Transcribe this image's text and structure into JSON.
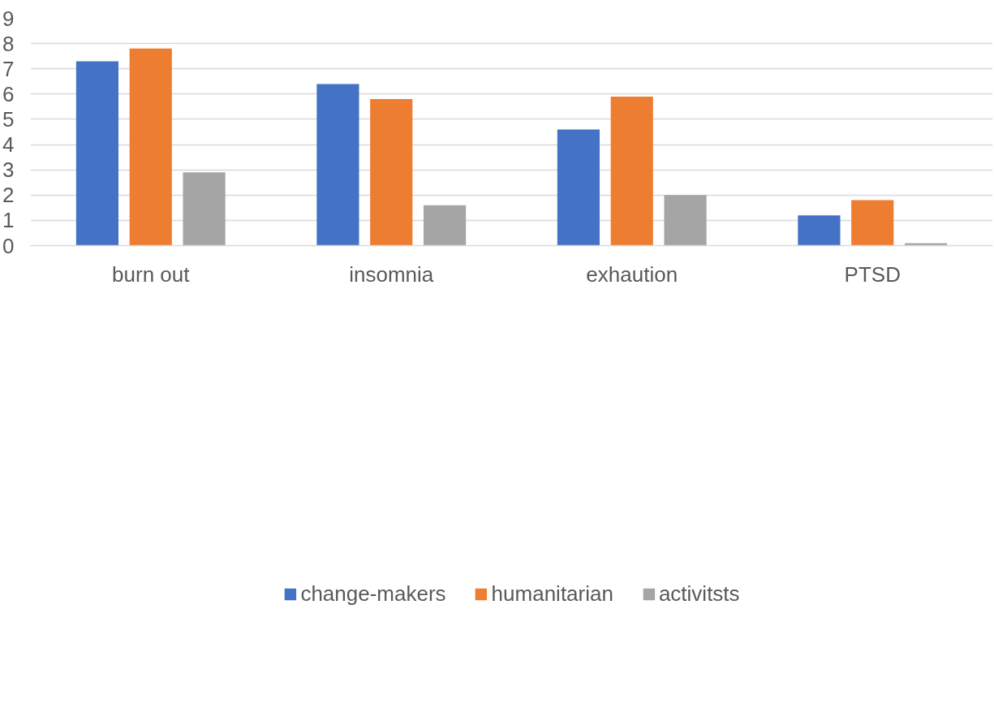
{
  "chart_data": {
    "type": "bar",
    "categories": [
      "burn out",
      "insomnia",
      "exhaution",
      "PTSD"
    ],
    "series": [
      {
        "name": "change-makers",
        "color": "#4472c4",
        "values": [
          7.3,
          6.4,
          4.6,
          1.2
        ]
      },
      {
        "name": "humanitarian",
        "color": "#ed7d31",
        "values": [
          7.8,
          5.8,
          5.9,
          1.8
        ]
      },
      {
        "name": "activitsts",
        "color": "#a5a5a5",
        "values": [
          2.9,
          1.6,
          2.0,
          0.1
        ]
      }
    ],
    "ylim": [
      0,
      9
    ],
    "yticks": [
      0,
      1,
      2,
      3,
      4,
      5,
      6,
      7,
      8,
      9
    ],
    "grid": "y",
    "legend": "bottom"
  }
}
